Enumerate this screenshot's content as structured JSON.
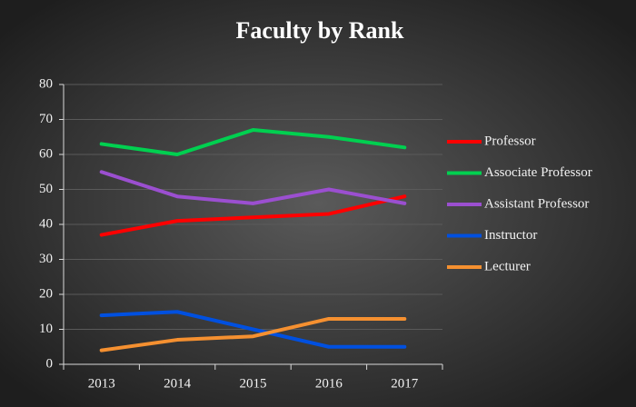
{
  "chart_data": {
    "type": "line",
    "title": "Faculty  by Rank",
    "categories": [
      "2013",
      "2014",
      "2015",
      "2016",
      "2017"
    ],
    "series": [
      {
        "name": "Professor",
        "color": "#ff0000",
        "values": [
          37,
          41,
          42,
          43,
          48
        ]
      },
      {
        "name": "Associate Professor",
        "color": "#00d050",
        "values": [
          63,
          60,
          67,
          65,
          62
        ]
      },
      {
        "name": "Assistant Professor",
        "color": "#9b4fd0",
        "values": [
          55,
          48,
          46,
          50,
          46
        ]
      },
      {
        "name": "Instructor",
        "color": "#0050e0",
        "values": [
          14,
          15,
          10,
          5,
          5
        ]
      },
      {
        "name": "Lecturer",
        "color": "#f59030",
        "values": [
          4,
          7,
          8,
          13,
          13
        ]
      }
    ],
    "ylim": [
      0,
      80
    ],
    "yticks": [
      0,
      10,
      20,
      30,
      40,
      50,
      60,
      70,
      80
    ],
    "grid": true,
    "legend": "right"
  }
}
